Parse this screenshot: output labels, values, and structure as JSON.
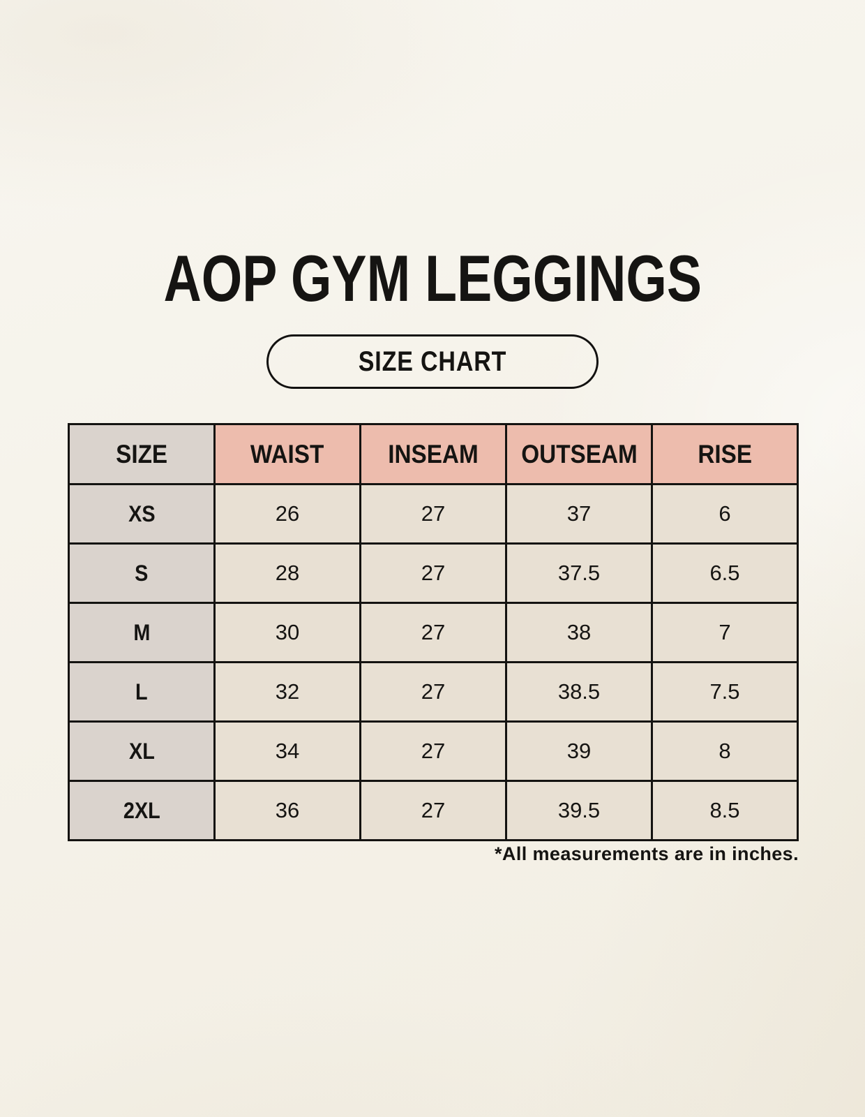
{
  "header": {
    "title": "AOP GYM LEGGINGS",
    "badge": "SIZE CHART"
  },
  "chart_data": {
    "type": "table",
    "title": "AOP GYM LEGGINGS",
    "subtitle": "SIZE CHART",
    "columns": [
      "SIZE",
      "WAIST",
      "INSEAM",
      "OUTSEAM",
      "RISE"
    ],
    "rows": [
      [
        "XS",
        "26",
        "27",
        "37",
        "6"
      ],
      [
        "S",
        "28",
        "27",
        "37.5",
        "6.5"
      ],
      [
        "M",
        "30",
        "27",
        "38",
        "7"
      ],
      [
        "L",
        "32",
        "27",
        "38.5",
        "7.5"
      ],
      [
        "XL",
        "34",
        "27",
        "39",
        "8"
      ],
      [
        "2XL",
        "36",
        "27",
        "39.5",
        "8.5"
      ]
    ],
    "units": "inches",
    "footnote": "*All measurements are in inches.",
    "legend_position": "none",
    "grid": "full-black-borders"
  },
  "colors": {
    "background": "#f5f2e9",
    "header_salmon": "#edbcad",
    "size_column_gray": "#dad3cd",
    "value_cell_beige": "#e8e0d3",
    "border_black": "#141311",
    "text": "#151412"
  }
}
